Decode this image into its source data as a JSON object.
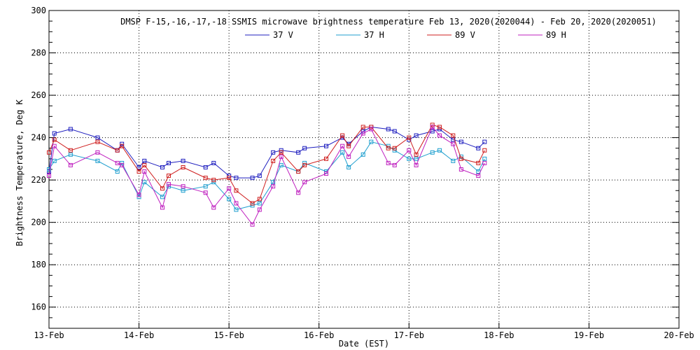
{
  "chart_data": {
    "type": "line",
    "title": "DMSP F-15,-16,-17,-18 SSMIS microwave brightness temperature Feb 13, 2020(2020044) - Feb 20, 2020(2020051)",
    "xlabel": "Date (EST)",
    "ylabel": "Brightness Temperature, Deg K",
    "xlim": [
      0,
      7
    ],
    "ylim": [
      150,
      300
    ],
    "x_ticks": [
      "13-Feb",
      "14-Feb",
      "15-Feb",
      "16-Feb",
      "17-Feb",
      "18-Feb",
      "19-Feb",
      "20-Feb"
    ],
    "y_ticks": [
      160,
      180,
      200,
      220,
      240,
      260,
      280,
      300
    ],
    "grid": true,
    "legend_position": "top-center",
    "series": [
      {
        "name": "37 V",
        "color": "#1f1fbf",
        "points": [
          [
            0.0,
            224
          ],
          [
            0.06,
            242
          ],
          [
            0.24,
            244
          ],
          [
            0.54,
            240
          ],
          [
            0.76,
            234
          ],
          [
            0.81,
            237
          ],
          [
            1.0,
            226
          ],
          [
            1.06,
            229
          ],
          [
            1.26,
            226
          ],
          [
            1.33,
            228
          ],
          [
            1.49,
            229
          ],
          [
            1.74,
            226
          ],
          [
            1.83,
            228
          ],
          [
            2.0,
            222
          ],
          [
            2.08,
            221
          ],
          [
            2.26,
            221
          ],
          [
            2.34,
            222
          ],
          [
            2.49,
            233
          ],
          [
            2.58,
            234
          ],
          [
            2.77,
            233
          ],
          [
            2.84,
            235
          ],
          [
            3.08,
            236
          ],
          [
            3.26,
            240
          ],
          [
            3.33,
            237
          ],
          [
            3.49,
            243
          ],
          [
            3.58,
            245
          ],
          [
            3.77,
            244
          ],
          [
            3.84,
            243
          ],
          [
            4.0,
            239
          ],
          [
            4.08,
            241
          ],
          [
            4.26,
            243
          ],
          [
            4.34,
            244
          ],
          [
            4.49,
            239
          ],
          [
            4.58,
            238
          ],
          [
            4.77,
            235
          ],
          [
            4.84,
            238
          ]
        ]
      },
      {
        "name": "37 H",
        "color": "#1f9fcf",
        "points": [
          [
            0.0,
            225
          ],
          [
            0.06,
            229
          ],
          [
            0.24,
            232
          ],
          [
            0.54,
            229
          ],
          [
            0.76,
            224
          ],
          [
            0.81,
            228
          ],
          [
            1.0,
            212
          ],
          [
            1.06,
            219
          ],
          [
            1.26,
            212
          ],
          [
            1.33,
            217
          ],
          [
            1.49,
            215
          ],
          [
            1.74,
            217
          ],
          [
            1.83,
            219
          ],
          [
            2.0,
            211
          ],
          [
            2.08,
            206
          ],
          [
            2.26,
            208
          ],
          [
            2.34,
            209
          ],
          [
            2.49,
            219
          ],
          [
            2.58,
            227
          ],
          [
            2.77,
            224
          ],
          [
            2.84,
            228
          ],
          [
            3.08,
            224
          ],
          [
            3.26,
            233
          ],
          [
            3.33,
            226
          ],
          [
            3.49,
            232
          ],
          [
            3.58,
            238
          ],
          [
            3.77,
            236
          ],
          [
            3.84,
            234
          ],
          [
            4.0,
            230
          ],
          [
            4.08,
            230
          ],
          [
            4.26,
            233
          ],
          [
            4.34,
            234
          ],
          [
            4.49,
            229
          ],
          [
            4.58,
            231
          ],
          [
            4.77,
            224
          ],
          [
            4.84,
            230
          ]
        ]
      },
      {
        "name": "89 V",
        "color": "#cf1f1f",
        "points": [
          [
            0.0,
            233
          ],
          [
            0.06,
            239
          ],
          [
            0.24,
            234
          ],
          [
            0.54,
            238
          ],
          [
            0.76,
            234
          ],
          [
            0.81,
            236
          ],
          [
            1.0,
            224
          ],
          [
            1.06,
            227
          ],
          [
            1.26,
            216
          ],
          [
            1.33,
            222
          ],
          [
            1.49,
            226
          ],
          [
            1.74,
            221
          ],
          [
            1.83,
            220
          ],
          [
            2.0,
            221
          ],
          [
            2.08,
            215
          ],
          [
            2.26,
            209
          ],
          [
            2.34,
            211
          ],
          [
            2.49,
            229
          ],
          [
            2.58,
            233
          ],
          [
            2.77,
            224
          ],
          [
            2.84,
            227
          ],
          [
            3.08,
            230
          ],
          [
            3.26,
            241
          ],
          [
            3.33,
            236
          ],
          [
            3.49,
            245
          ],
          [
            3.58,
            245
          ],
          [
            3.77,
            235
          ],
          [
            3.84,
            235
          ],
          [
            4.0,
            240
          ],
          [
            4.08,
            232
          ],
          [
            4.26,
            246
          ],
          [
            4.34,
            245
          ],
          [
            4.49,
            241
          ],
          [
            4.58,
            230
          ],
          [
            4.77,
            228
          ],
          [
            4.84,
            234
          ]
        ]
      },
      {
        "name": "89 H",
        "color": "#bf1fbf",
        "points": [
          [
            0.0,
            222
          ],
          [
            0.06,
            236
          ],
          [
            0.24,
            227
          ],
          [
            0.54,
            233
          ],
          [
            0.76,
            228
          ],
          [
            0.81,
            227
          ],
          [
            1.0,
            213
          ],
          [
            1.06,
            224
          ],
          [
            1.26,
            207
          ],
          [
            1.33,
            218
          ],
          [
            1.49,
            217
          ],
          [
            1.74,
            214
          ],
          [
            1.83,
            207
          ],
          [
            2.0,
            216
          ],
          [
            2.08,
            209
          ],
          [
            2.26,
            199
          ],
          [
            2.34,
            206
          ],
          [
            2.49,
            217
          ],
          [
            2.58,
            231
          ],
          [
            2.77,
            214
          ],
          [
            2.84,
            219
          ],
          [
            3.08,
            223
          ],
          [
            3.26,
            236
          ],
          [
            3.33,
            231
          ],
          [
            3.49,
            242
          ],
          [
            3.58,
            244
          ],
          [
            3.77,
            228
          ],
          [
            3.84,
            227
          ],
          [
            4.0,
            234
          ],
          [
            4.08,
            227
          ],
          [
            4.26,
            245
          ],
          [
            4.34,
            241
          ],
          [
            4.49,
            237
          ],
          [
            4.58,
            225
          ],
          [
            4.77,
            222
          ],
          [
            4.84,
            228
          ]
        ]
      }
    ]
  }
}
